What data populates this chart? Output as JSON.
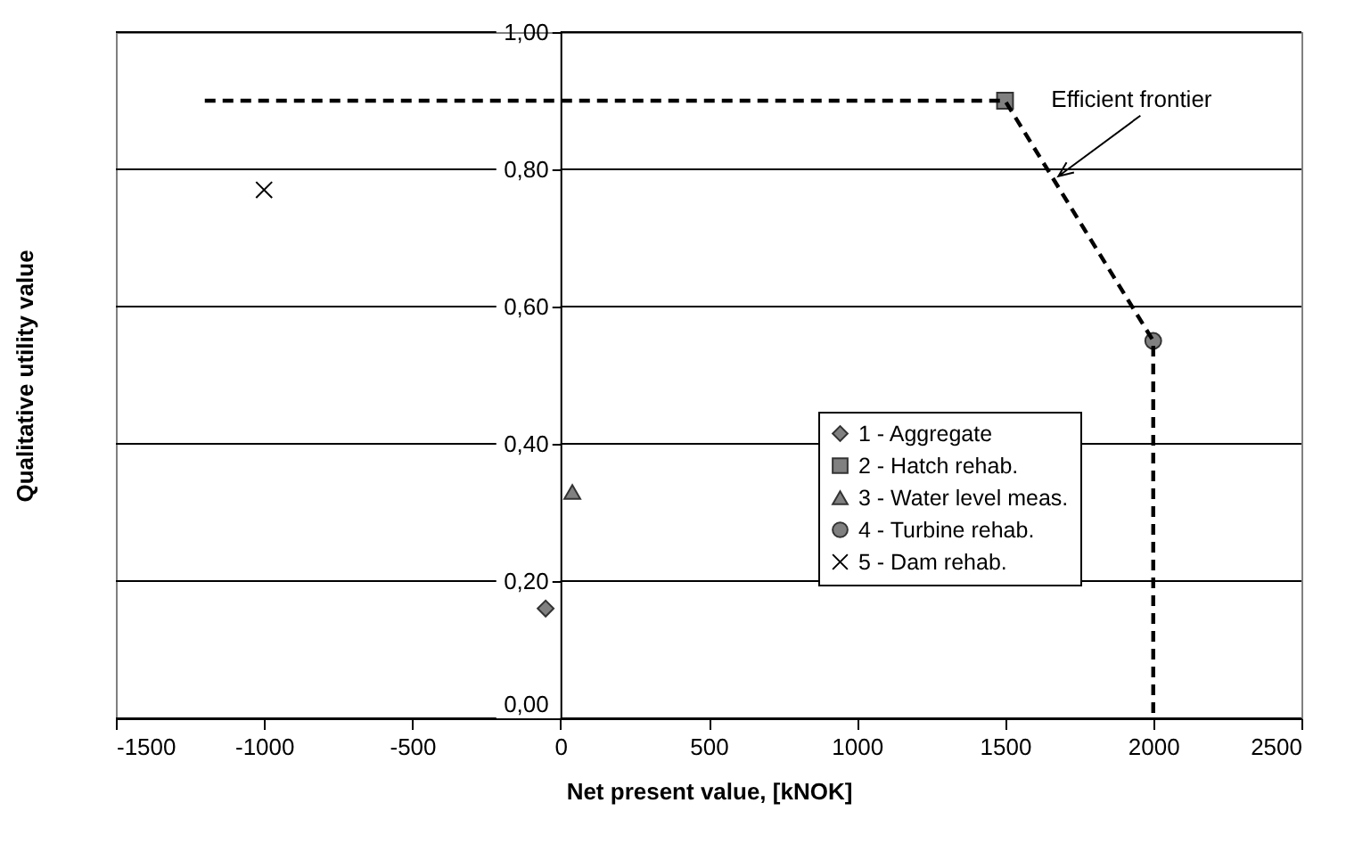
{
  "chart_data": {
    "type": "scatter",
    "xlabel": "Net present value, [kNOK]",
    "ylabel": "Qualitative utility value",
    "xlim": [
      -1500,
      2500
    ],
    "xticks": [
      -1500,
      -1000,
      -500,
      0,
      500,
      1000,
      1500,
      2000,
      2500
    ],
    "ylim": [
      0,
      1
    ],
    "yticks": [
      {
        "value": 0,
        "label": "0,00"
      },
      {
        "value": 0.2,
        "label": "0,20"
      },
      {
        "value": 0.4,
        "label": "0,40"
      },
      {
        "value": 0.6,
        "label": "0,60"
      },
      {
        "value": 0.8,
        "label": "0,80"
      },
      {
        "value": 1,
        "label": "1,00"
      }
    ],
    "grid": "y",
    "legend": "bottom right",
    "series": [
      {
        "name": "1 - Aggregate",
        "color": "#808080",
        "marker": "diamond",
        "x": [
          -50
        ],
        "values": [
          0.16
        ]
      },
      {
        "name": "2 - Hatch rehab.",
        "color": "#808080",
        "marker": "square",
        "x": [
          1500
        ],
        "values": [
          0.9
        ]
      },
      {
        "name": "3 - Water level meas.",
        "color": "#808080",
        "marker": "triangle",
        "x": [
          40
        ],
        "values": [
          0.33
        ]
      },
      {
        "name": "4 - Turbine rehab.",
        "color": "#808080",
        "marker": "circle",
        "x": [
          2000
        ],
        "values": [
          0.55
        ]
      },
      {
        "name": "5 - Dam rehab.",
        "color": "#000000",
        "marker": "cross",
        "x": [
          -1000
        ],
        "values": [
          0.77
        ]
      },
      {
        "type": "line",
        "color": "#000000",
        "line_style": "dashed",
        "marker": "none",
        "x": [
          -1200,
          1500,
          2000,
          2000
        ],
        "values": [
          0.9,
          0.9,
          0.55,
          0
        ]
      }
    ],
    "annotations": [
      {
        "text": "Efficient frontier",
        "x": 1680,
        "y": 0.79
      }
    ]
  }
}
